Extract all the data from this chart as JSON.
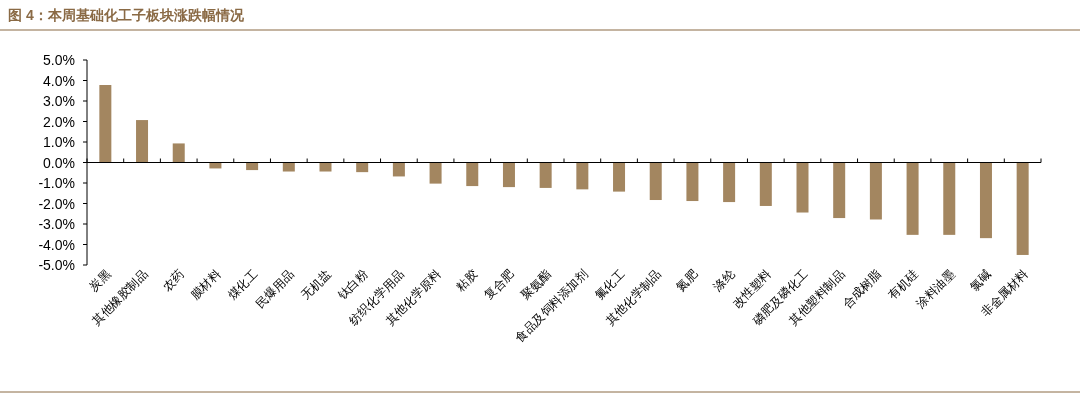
{
  "chart_data": {
    "type": "bar",
    "title": "图 4：本周基础化工子板块涨跌幅情况",
    "categories": [
      "炭黑",
      "其他橡胶制品",
      "农药",
      "膜材料",
      "煤化工",
      "民爆用品",
      "无机盐",
      "钛白粉",
      "纺织化学用品",
      "其他化学原料",
      "粘胶",
      "复合肥",
      "聚氨酯",
      "食品及饲料添加剂",
      "氟化工",
      "其他化学制品",
      "氮肥",
      "涤纶",
      "改性塑料",
      "磷肥及磷化工",
      "其他塑料制品",
      "合成树脂",
      "有机硅",
      "涂料油墨",
      "氯碱",
      "非金属材料"
    ],
    "values": [
      3.78,
      2.07,
      0.93,
      -0.29,
      -0.37,
      -0.44,
      -0.44,
      -0.47,
      -0.68,
      -1.03,
      -1.15,
      -1.2,
      -1.24,
      -1.31,
      -1.42,
      -1.83,
      -1.88,
      -1.93,
      -2.12,
      -2.44,
      -2.71,
      -2.78,
      -3.53,
      -3.53,
      -3.69,
      -4.51
    ],
    "color": "#a38660",
    "ylim": [
      -5,
      5
    ],
    "yticks": [
      {
        "value": 5,
        "label": "5.0%"
      },
      {
        "value": 4,
        "label": "4.0%"
      },
      {
        "value": 3,
        "label": "3.0%"
      },
      {
        "value": 2,
        "label": "2.0%"
      },
      {
        "value": 1,
        "label": "1.0%"
      },
      {
        "value": 0,
        "label": "0.0%"
      },
      {
        "value": -1,
        "label": "-1.0%"
      },
      {
        "value": -2,
        "label": "-2.0%"
      },
      {
        "value": -3,
        "label": "-3.0%"
      },
      {
        "value": -4,
        "label": "-4.0%"
      },
      {
        "value": -5,
        "label": "-5.0%"
      }
    ]
  }
}
